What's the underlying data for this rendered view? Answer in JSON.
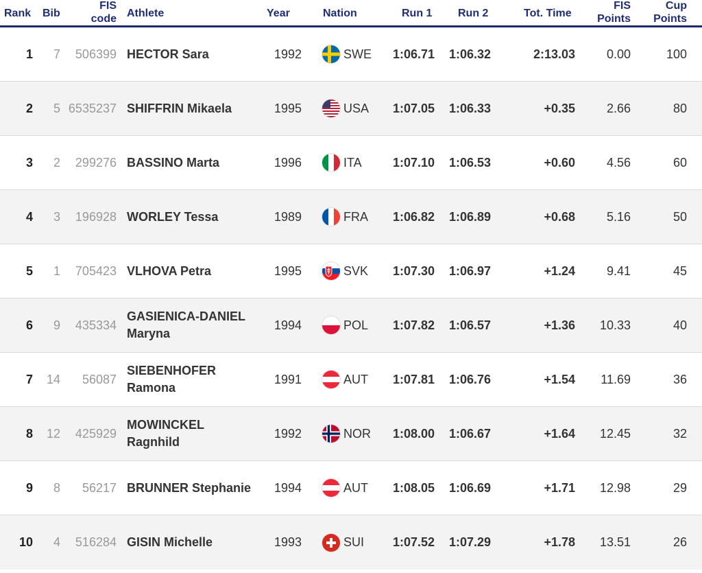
{
  "headers": {
    "rank": "Rank",
    "bib": "Bib",
    "fis_code_line1": "FIS",
    "fis_code_line2": "code",
    "athlete": "Athlete",
    "year": "Year",
    "nation": "Nation",
    "run1": "Run 1",
    "run2": "Run 2",
    "tot_time": "Tot. Time",
    "fis_points_line1": "FIS",
    "fis_points_line2": "Points",
    "cup_points_line1": "Cup",
    "cup_points_line2": "Points"
  },
  "colors": {
    "header_text": "#1f2d73",
    "header_rule": "#1b2a6b",
    "alt_row": "#f3f3f3"
  },
  "rows": [
    {
      "rank": "1",
      "bib": "7",
      "fis_code": "506399",
      "athlete_l1": "HECTOR Sara",
      "athlete_l2": "",
      "year": "1992",
      "nation": "SWE",
      "flag": "swe-flag-icon",
      "run1": "1:06.71",
      "run2": "1:06.32",
      "tot_time": "2:13.03",
      "fis_points": "0.00",
      "cup_points": "100"
    },
    {
      "rank": "2",
      "bib": "5",
      "fis_code": "6535237",
      "athlete_l1": "SHIFFRIN Mikaela",
      "athlete_l2": "",
      "year": "1995",
      "nation": "USA",
      "flag": "usa-flag-icon",
      "run1": "1:07.05",
      "run2": "1:06.33",
      "tot_time": "+0.35",
      "fis_points": "2.66",
      "cup_points": "80"
    },
    {
      "rank": "3",
      "bib": "2",
      "fis_code": "299276",
      "athlete_l1": "BASSINO Marta",
      "athlete_l2": "",
      "year": "1996",
      "nation": "ITA",
      "flag": "ita-flag-icon",
      "run1": "1:07.10",
      "run2": "1:06.53",
      "tot_time": "+0.60",
      "fis_points": "4.56",
      "cup_points": "60"
    },
    {
      "rank": "4",
      "bib": "3",
      "fis_code": "196928",
      "athlete_l1": "WORLEY Tessa",
      "athlete_l2": "",
      "year": "1989",
      "nation": "FRA",
      "flag": "fra-flag-icon",
      "run1": "1:06.82",
      "run2": "1:06.89",
      "tot_time": "+0.68",
      "fis_points": "5.16",
      "cup_points": "50"
    },
    {
      "rank": "5",
      "bib": "1",
      "fis_code": "705423",
      "athlete_l1": "VLHOVA Petra",
      "athlete_l2": "",
      "year": "1995",
      "nation": "SVK",
      "flag": "svk-flag-icon",
      "run1": "1:07.30",
      "run2": "1:06.97",
      "tot_time": "+1.24",
      "fis_points": "9.41",
      "cup_points": "45"
    },
    {
      "rank": "6",
      "bib": "9",
      "fis_code": "435334",
      "athlete_l1": "GASIENICA-DANIEL",
      "athlete_l2": "Maryna",
      "year": "1994",
      "nation": "POL",
      "flag": "pol-flag-icon",
      "run1": "1:07.82",
      "run2": "1:06.57",
      "tot_time": "+1.36",
      "fis_points": "10.33",
      "cup_points": "40"
    },
    {
      "rank": "7",
      "bib": "14",
      "fis_code": "56087",
      "athlete_l1": "SIEBENHOFER",
      "athlete_l2": "Ramona",
      "year": "1991",
      "nation": "AUT",
      "flag": "aut-flag-icon",
      "run1": "1:07.81",
      "run2": "1:06.76",
      "tot_time": "+1.54",
      "fis_points": "11.69",
      "cup_points": "36"
    },
    {
      "rank": "8",
      "bib": "12",
      "fis_code": "425929",
      "athlete_l1": "MOWINCKEL",
      "athlete_l2": "Ragnhild",
      "year": "1992",
      "nation": "NOR",
      "flag": "nor-flag-icon",
      "run1": "1:08.00",
      "run2": "1:06.67",
      "tot_time": "+1.64",
      "fis_points": "12.45",
      "cup_points": "32"
    },
    {
      "rank": "9",
      "bib": "8",
      "fis_code": "56217",
      "athlete_l1": "BRUNNER Stephanie",
      "athlete_l2": "",
      "year": "1994",
      "nation": "AUT",
      "flag": "aut-flag-icon",
      "run1": "1:08.05",
      "run2": "1:06.69",
      "tot_time": "+1.71",
      "fis_points": "12.98",
      "cup_points": "29"
    },
    {
      "rank": "10",
      "bib": "4",
      "fis_code": "516284",
      "athlete_l1": "GISIN Michelle",
      "athlete_l2": "",
      "year": "1993",
      "nation": "SUI",
      "flag": "sui-flag-icon",
      "run1": "1:07.52",
      "run2": "1:07.29",
      "tot_time": "+1.78",
      "fis_points": "13.51",
      "cup_points": "26"
    }
  ]
}
